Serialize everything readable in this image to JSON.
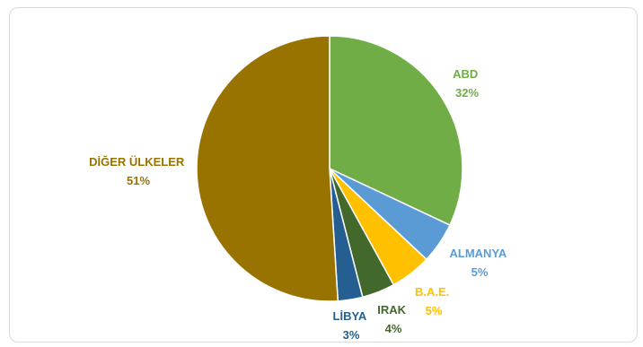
{
  "chart_data": {
    "type": "pie",
    "title": "",
    "start_angle_deg": 0,
    "direction": "clockwise",
    "slices": [
      {
        "label": "ABD",
        "value": 32,
        "value_label": "32%",
        "color": "#70ad47"
      },
      {
        "label": "ALMANYA",
        "value": 5,
        "value_label": "5%",
        "color": "#5b9bd5"
      },
      {
        "label": "B.A.E.",
        "value": 5,
        "value_label": "5%",
        "color": "#ffc000"
      },
      {
        "label": "IRAK",
        "value": 4,
        "value_label": "4%",
        "color": "#43682b"
      },
      {
        "label": "LİBYA",
        "value": 3,
        "value_label": "3%",
        "color": "#255e91"
      },
      {
        "label": "DİĞER ÜLKELER",
        "value": 51,
        "value_label": "51%",
        "color": "#997300"
      }
    ]
  }
}
